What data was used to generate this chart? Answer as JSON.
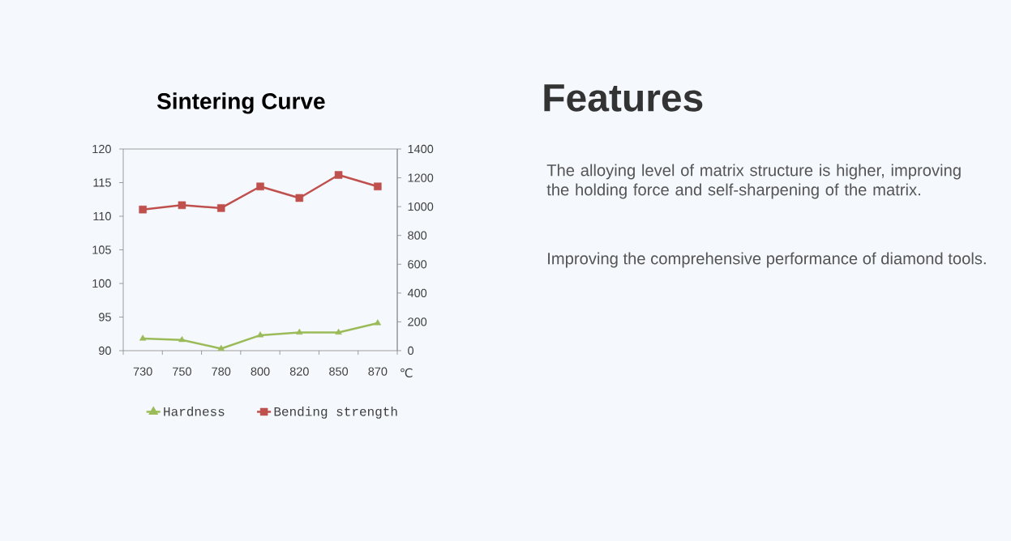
{
  "chart_data": [
    {
      "type": "line",
      "title": "Sintering Curve",
      "xlabel": "℃",
      "categories": [
        "730",
        "750",
        "780",
        "800",
        "820",
        "850",
        "870"
      ],
      "series": [
        {
          "name": "Hardness",
          "color": "#9bbb59",
          "marker": "triangle",
          "values": [
            91.8,
            91.6,
            90.3,
            92.3,
            92.7,
            92.7,
            94.1
          ]
        },
        {
          "name": "Bending strength",
          "color": "#c0504d",
          "marker": "square",
          "axis": "y2",
          "values": [
            980,
            1010,
            990,
            1140,
            1060,
            1220,
            1140
          ]
        }
      ],
      "ylim": [
        90,
        120
      ],
      "yticks": [
        90,
        95,
        100,
        105,
        110,
        115,
        120
      ],
      "y2lim": [
        0,
        1400
      ],
      "y2ticks": [
        0,
        200,
        400,
        600,
        800,
        1000,
        1200,
        1400
      ],
      "legend": "bottom"
    },
    {
      "type": "other",
      "title": "Features",
      "annotations": [
        "The alloying level of matrix structure is higher, improving the holding force and self-sharpening of the matrix.",
        "Improving the comprehensive performance of diamond tools."
      ]
    }
  ]
}
